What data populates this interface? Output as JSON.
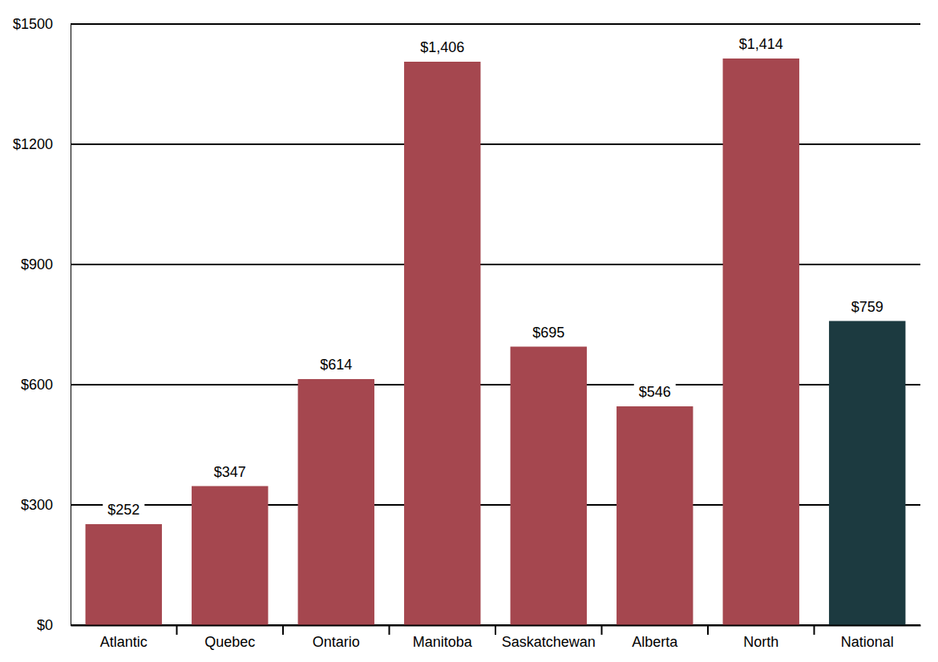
{
  "chart_data": {
    "type": "bar",
    "categories": [
      "Atlantic",
      "Quebec",
      "Ontario",
      "Manitoba",
      "Saskatchewan",
      "Alberta",
      "North",
      "National"
    ],
    "values": [
      252,
      347,
      614,
      1406,
      695,
      546,
      1414,
      759
    ],
    "value_labels": [
      "$252",
      "$347",
      "$614",
      "$1,406",
      "$695",
      "$546",
      "$1,414",
      "$759"
    ],
    "colors": [
      "#a5474f",
      "#a5474f",
      "#a5474f",
      "#a5474f",
      "#a5474f",
      "#a5474f",
      "#a5474f",
      "#1c3a40"
    ],
    "ylim": [
      0,
      1500
    ],
    "yticks": [
      {
        "value": 0,
        "label": "$0"
      },
      {
        "value": 300,
        "label": "$300"
      },
      {
        "value": 600,
        "label": "$600"
      },
      {
        "value": 900,
        "label": "$900"
      },
      {
        "value": 1200,
        "label": "$1200"
      },
      {
        "value": 1500,
        "label": "$1500"
      }
    ],
    "grid": true,
    "data_labels": true
  }
}
